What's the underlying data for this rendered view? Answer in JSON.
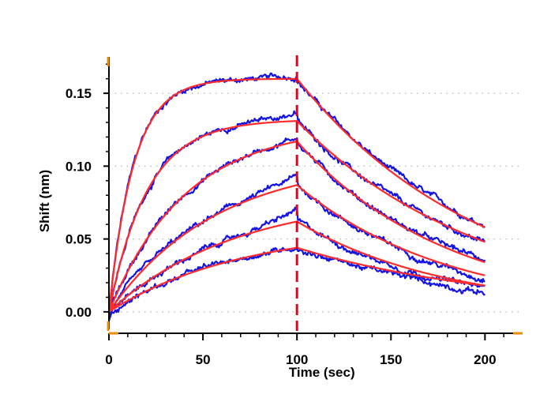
{
  "chart_data": {
    "type": "line",
    "title": "",
    "xlabel": "Time (sec)",
    "ylabel": "Shift (nm)",
    "xlim": [
      0,
      220
    ],
    "ylim": [
      -0.012,
      0.175
    ],
    "x_ticks": [
      0,
      50,
      100,
      150,
      200
    ],
    "x_tick_labels": [
      "0",
      "50",
      "100",
      "150",
      "200"
    ],
    "y_ticks": [
      0.0,
      0.05,
      0.1,
      0.15
    ],
    "y_tick_labels": [
      "0.00",
      "0.05",
      "0.10",
      "0.15"
    ],
    "grid": "horizontal-dotted",
    "legend": "none",
    "vline": {
      "x": 100,
      "color": "#e8001c",
      "style": "dashed"
    },
    "colors": {
      "raw": "#1414e6",
      "fit": "#ff2a2a",
      "vline": "#e8001c",
      "grid": "#b4b4b4",
      "corner_marks": "#f08c00"
    },
    "association_end": 100,
    "dissociation_end": 200,
    "series": [
      {
        "plateau": 0.16,
        "fit_at_100": 0.16,
        "fit_at_200": 0.058,
        "raw_at_100": 0.162,
        "raw_at_200": 0.06
      },
      {
        "plateau": 0.132,
        "fit_at_100": 0.131,
        "fit_at_200": 0.048,
        "raw_at_100": 0.137,
        "raw_at_200": 0.048
      },
      {
        "plateau": 0.128,
        "fit_at_100": 0.117,
        "fit_at_200": 0.034,
        "raw_at_100": 0.12,
        "raw_at_200": 0.036
      },
      {
        "plateau": 0.105,
        "fit_at_100": 0.087,
        "fit_at_200": 0.025,
        "raw_at_100": 0.093,
        "raw_at_200": 0.023
      },
      {
        "plateau": 0.08,
        "fit_at_100": 0.062,
        "fit_at_200": 0.018,
        "raw_at_100": 0.07,
        "raw_at_200": 0.016
      },
      {
        "plateau": 0.058,
        "fit_at_100": 0.044,
        "fit_at_200": 0.018,
        "raw_at_100": 0.045,
        "raw_at_200": 0.013
      }
    ]
  }
}
